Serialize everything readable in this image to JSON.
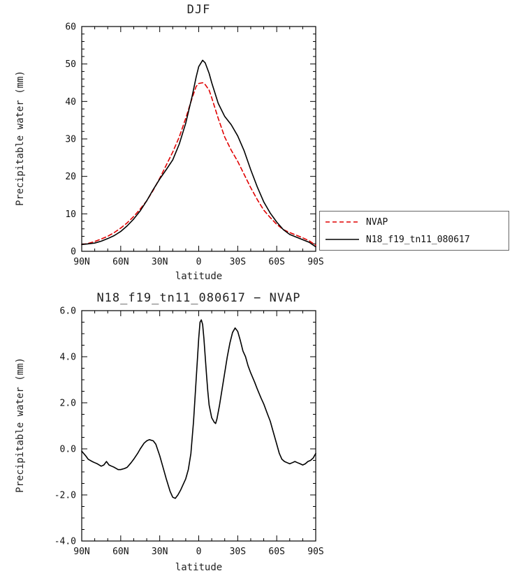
{
  "figure": {
    "background": "#ffffff",
    "frame_color": "#000000"
  },
  "chart_data": [
    {
      "type": "line",
      "title": "DJF",
      "xlabel": "latitude",
      "ylabel": "Precipitable water (mm)",
      "xlim": [
        90,
        -90
      ],
      "ylim": [
        0,
        60
      ],
      "xticks": [
        90,
        60,
        30,
        0,
        -30,
        -60,
        -90
      ],
      "xtick_labels": [
        "90N",
        "60N",
        "30N",
        "0",
        "30S",
        "60S",
        "90S"
      ],
      "yticks": [
        0,
        10,
        20,
        30,
        40,
        50,
        60
      ],
      "ytick_labels": [
        "0",
        "10",
        "20",
        "30",
        "40",
        "50",
        "60"
      ],
      "xminor_step": 10,
      "yminor_step": 2,
      "grid": false,
      "legend_position": "outside-right",
      "series": [
        {
          "name": "NVAP",
          "color": "#e00000",
          "dash": "6,4",
          "x": [
            90,
            85,
            80,
            75,
            70,
            65,
            60,
            55,
            50,
            45,
            40,
            35,
            30,
            25,
            20,
            15,
            10,
            5,
            2,
            0,
            -3,
            -5,
            -8,
            -10,
            -15,
            -20,
            -25,
            -30,
            -35,
            -40,
            -45,
            -50,
            -55,
            -60,
            -65,
            -70,
            -75,
            -80,
            -85,
            -90
          ],
          "y": [
            1.8,
            2.1,
            2.6,
            3.3,
            4.0,
            5.0,
            6.2,
            7.6,
            9.3,
            11.3,
            13.5,
            16.3,
            19.5,
            23.0,
            26.5,
            30.5,
            35.5,
            41.0,
            44.0,
            44.8,
            45.0,
            44.5,
            43.0,
            41.0,
            35.5,
            30.5,
            27.0,
            24.0,
            20.5,
            17.0,
            13.8,
            11.0,
            9.0,
            7.2,
            5.8,
            5.0,
            4.3,
            3.6,
            2.8,
            1.6
          ]
        },
        {
          "name": "N18_f19_tn11_080617",
          "color": "#000000",
          "dash": "none",
          "x": [
            90,
            85,
            80,
            75,
            70,
            65,
            60,
            55,
            50,
            45,
            40,
            35,
            30,
            25,
            20,
            15,
            10,
            5,
            2,
            0,
            -3,
            -5,
            -8,
            -10,
            -15,
            -20,
            -25,
            -30,
            -35,
            -40,
            -45,
            -50,
            -55,
            -60,
            -65,
            -70,
            -75,
            -80,
            -85,
            -90
          ],
          "y": [
            1.8,
            2.0,
            2.2,
            2.7,
            3.4,
            4.2,
            5.3,
            6.8,
            8.6,
            10.8,
            13.5,
            16.5,
            19.3,
            21.8,
            24.4,
            28.6,
            34.2,
            41.5,
            46.5,
            49.3,
            51.0,
            50.3,
            47.5,
            45.0,
            39.5,
            36.0,
            33.8,
            30.8,
            26.8,
            21.8,
            17.2,
            13.2,
            10.2,
            7.8,
            5.8,
            4.5,
            3.8,
            3.1,
            2.4,
            1.2
          ]
        }
      ]
    },
    {
      "type": "line",
      "title": "N18_f19_tn11_080617 − NVAP",
      "xlabel": "latitude",
      "ylabel": "Precipitable water (mm)",
      "xlim": [
        90,
        -90
      ],
      "ylim": [
        -4,
        6
      ],
      "xticks": [
        90,
        60,
        30,
        0,
        -30,
        -60,
        -90
      ],
      "xtick_labels": [
        "90N",
        "60N",
        "30N",
        "0",
        "30S",
        "60S",
        "90S"
      ],
      "yticks": [
        -4,
        -2,
        0,
        2,
        4,
        6
      ],
      "ytick_labels": [
        "-4.0",
        "-2.0",
        "0.0",
        "2.0",
        "4.0",
        "6.0"
      ],
      "xminor_step": 10,
      "yminor_step": 0.5,
      "grid": false,
      "series": [
        {
          "name": "N18_f19_tn11_080617 minus NVAP",
          "color": "#000000",
          "dash": "none",
          "x": [
            90,
            87,
            85,
            82,
            80,
            78,
            75,
            73,
            71,
            69,
            67,
            65,
            62,
            60,
            57,
            55,
            52,
            50,
            47,
            45,
            42,
            40,
            38,
            35,
            33,
            30,
            27,
            25,
            22,
            20,
            18,
            16,
            14,
            12,
            10,
            8,
            6,
            4,
            2,
            0,
            -1,
            -2,
            -3,
            -4,
            -5,
            -6,
            -7,
            -8,
            -10,
            -12,
            -13,
            -14,
            -16,
            -18,
            -20,
            -22,
            -24,
            -26,
            -28,
            -30,
            -32,
            -34,
            -36,
            -38,
            -40,
            -43,
            -45,
            -48,
            -50,
            -53,
            -55,
            -57,
            -60,
            -62,
            -64,
            -66,
            -68,
            -70,
            -72,
            -74,
            -76,
            -78,
            -80,
            -82,
            -84,
            -86,
            -88,
            -90
          ],
          "y": [
            -0.1,
            -0.3,
            -0.45,
            -0.55,
            -0.6,
            -0.65,
            -0.75,
            -0.7,
            -0.55,
            -0.7,
            -0.75,
            -0.8,
            -0.9,
            -0.9,
            -0.85,
            -0.8,
            -0.6,
            -0.45,
            -0.2,
            0.0,
            0.25,
            0.35,
            0.4,
            0.35,
            0.2,
            -0.3,
            -0.9,
            -1.3,
            -1.85,
            -2.1,
            -2.15,
            -2.0,
            -1.8,
            -1.55,
            -1.3,
            -0.9,
            -0.2,
            1.2,
            3.0,
            4.8,
            5.5,
            5.6,
            5.4,
            4.8,
            4.0,
            3.2,
            2.5,
            1.9,
            1.35,
            1.15,
            1.1,
            1.3,
            1.9,
            2.6,
            3.3,
            4.0,
            4.6,
            5.05,
            5.25,
            5.1,
            4.7,
            4.25,
            4.0,
            3.6,
            3.3,
            2.9,
            2.6,
            2.2,
            1.95,
            1.5,
            1.2,
            0.8,
            0.2,
            -0.2,
            -0.45,
            -0.55,
            -0.6,
            -0.65,
            -0.6,
            -0.55,
            -0.6,
            -0.65,
            -0.7,
            -0.65,
            -0.55,
            -0.5,
            -0.4,
            -0.2
          ]
        }
      ]
    }
  ],
  "legend": {
    "entries": [
      {
        "label": "NVAP"
      },
      {
        "label": "N18_f19_tn11_080617"
      }
    ]
  }
}
